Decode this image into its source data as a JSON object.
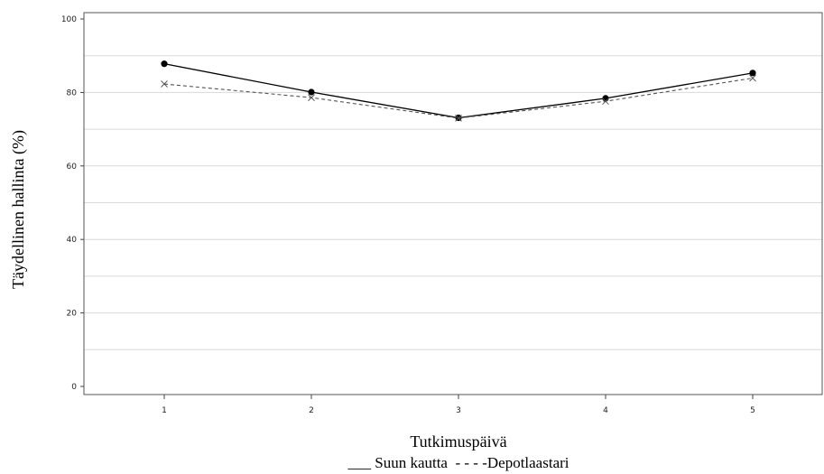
{
  "chart_data": {
    "type": "line",
    "title": "",
    "xlabel": "Tutkimuspäivä",
    "ylabel": "Täydellinen hallinta (%)",
    "categories": [
      "1",
      "2",
      "3",
      "4",
      "5"
    ],
    "ylim": [
      0,
      100
    ],
    "yticks": [
      "0",
      "20",
      "40",
      "60",
      "80",
      "100"
    ],
    "grid": true,
    "legend_position": "bottom",
    "legend_text": "___ Suun kautta  - - - -Depotlaastari",
    "series": [
      {
        "name": "Suun kautta",
        "values": [
          87.8,
          80.1,
          73.1,
          78.4,
          85.3
        ],
        "style": "solid",
        "marker": "circle",
        "color": "#000000"
      },
      {
        "name": "Depotlaastari",
        "values": [
          82.3,
          78.6,
          73.0,
          77.6,
          83.9
        ],
        "style": "dashed",
        "marker": "x",
        "color": "#555555"
      }
    ]
  }
}
